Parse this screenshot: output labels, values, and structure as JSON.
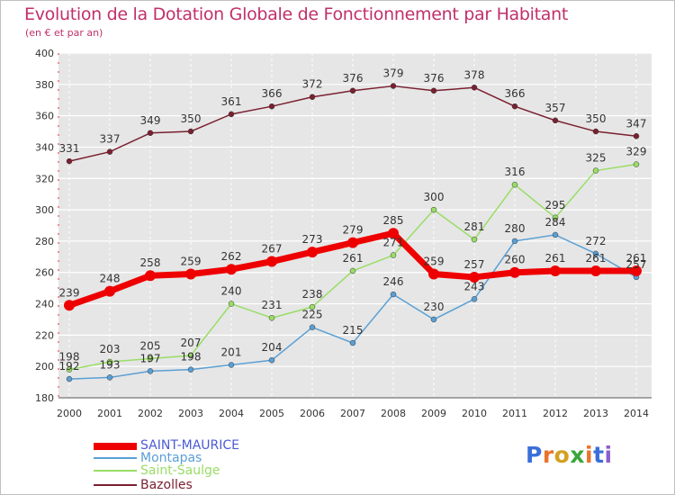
{
  "title": "Evolution de la Dotation Globale de Fonctionnement par Habitant",
  "subtitle": "(en € et par an)",
  "logo_text": "Proxiti",
  "chart_data": {
    "type": "line",
    "x": [
      "2000",
      "2001",
      "2002",
      "2003",
      "2004",
      "2005",
      "2006",
      "2007",
      "2008",
      "2009",
      "2010",
      "2011",
      "2012",
      "2013",
      "2014"
    ],
    "ylim": [
      180,
      400
    ],
    "y_ticks": [
      180,
      200,
      220,
      240,
      260,
      280,
      300,
      320,
      340,
      360,
      380,
      400
    ],
    "grid": "horizontal",
    "legend_position": "bottom-left",
    "series": [
      {
        "name": "SAINT-MAURICE",
        "color": "#ee0000",
        "label_color": "#4a5bd6",
        "values": [
          239,
          248,
          258,
          259,
          262,
          267,
          273,
          279,
          285,
          259,
          257,
          260,
          261,
          261,
          261
        ]
      },
      {
        "name": "Montapas",
        "color": "#5a9fd4",
        "label_color": "#5a9fd4",
        "values": [
          192,
          193,
          197,
          198,
          201,
          204,
          225,
          215,
          246,
          230,
          243,
          280,
          284,
          272,
          257
        ]
      },
      {
        "name": "Saint-Saulge",
        "color": "#99dd66",
        "label_color": "#99dd66",
        "values": [
          198,
          203,
          205,
          207,
          240,
          231,
          238,
          261,
          271,
          300,
          281,
          316,
          295,
          325,
          329
        ]
      },
      {
        "name": "Bazolles",
        "color": "#7a2030",
        "label_color": "#7a2030",
        "values": [
          331,
          337,
          349,
          350,
          361,
          366,
          372,
          376,
          379,
          376,
          378,
          366,
          357,
          350,
          347
        ]
      }
    ]
  }
}
